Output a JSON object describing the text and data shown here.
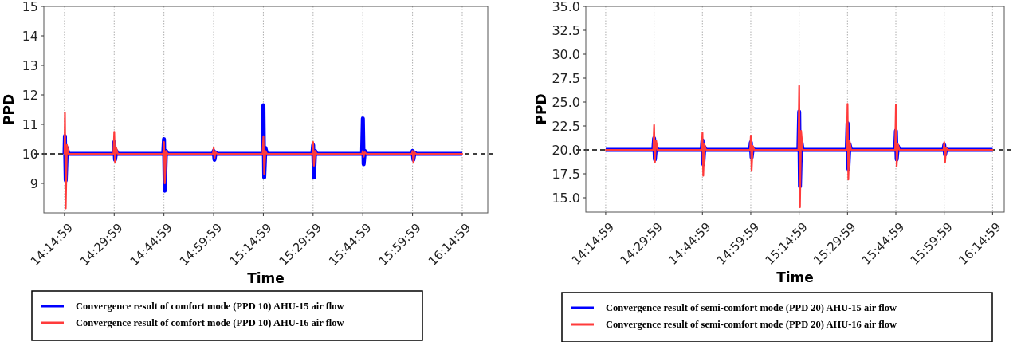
{
  "chart_data": [
    {
      "type": "line",
      "xlabel": "Time",
      "ylabel": "PPD",
      "xlim": [
        14.146,
        16.378
      ],
      "ylim": [
        8,
        15
      ],
      "xticks": [
        {
          "value": 14.249722,
          "label": "14:14:59"
        },
        {
          "value": 14.499722,
          "label": "14:29:59"
        },
        {
          "value": 14.749722,
          "label": "14:44:59"
        },
        {
          "value": 14.999722,
          "label": "14:59:59"
        },
        {
          "value": 15.249722,
          "label": "15:14:59"
        },
        {
          "value": 15.499722,
          "label": "15:29:59"
        },
        {
          "value": 15.749722,
          "label": "15:44:59"
        },
        {
          "value": 15.999722,
          "label": "15:59:59"
        },
        {
          "value": 16.249722,
          "label": "16:14:59"
        }
      ],
      "yticks": [
        9,
        10,
        11,
        12,
        13,
        14,
        15
      ],
      "grid": "x",
      "legend": "bottom",
      "marker": "none",
      "line_style": "solid",
      "ref_lines": [
        {
          "axis": "y",
          "value": 10,
          "label": null,
          "color": "#000000",
          "line_style": "dashed"
        }
      ],
      "x": [
        14.25,
        14.252,
        14.256,
        14.262,
        14.27,
        14.496,
        14.5,
        14.504,
        14.51,
        14.518,
        14.746,
        14.75,
        14.754,
        14.76,
        14.768,
        14.996,
        15.0,
        15.004,
        15.01,
        15.018,
        15.246,
        15.25,
        15.254,
        15.26,
        15.268,
        15.496,
        15.5,
        15.504,
        15.51,
        15.518,
        15.746,
        15.75,
        15.754,
        15.76,
        15.768,
        15.996,
        16.0,
        16.004,
        16.01,
        16.018,
        16.25
      ],
      "series": [
        {
          "name": "Convergence result of comfort mode (PPD 10) AHU-15 air flow",
          "color": "#0000ff",
          "values": [
            10,
            10.6,
            9.1,
            10.2,
            10,
            10,
            10.4,
            9.8,
            10.1,
            10,
            10,
            10.5,
            8.75,
            10.1,
            10,
            10,
            10.1,
            9.8,
            10.05,
            10,
            10,
            11.65,
            9.2,
            10.2,
            10,
            10,
            10.3,
            9.2,
            10.1,
            10,
            10,
            11.2,
            9.65,
            10.1,
            10,
            10,
            10.1,
            9.8,
            10.05,
            10,
            10
          ]
        },
        {
          "name": "Convergence result of comfort mode (PPD 10) AHU-16 air flow",
          "color": "#ff3b3b",
          "values": [
            10,
            11.4,
            8.15,
            10.3,
            10,
            10,
            10.75,
            9.7,
            10.2,
            10,
            10,
            10.4,
            9.0,
            10.1,
            10,
            10,
            10.2,
            9.85,
            10.05,
            10,
            10,
            10.6,
            9.3,
            10.1,
            10,
            10,
            10.4,
            9.6,
            10.1,
            10,
            10,
            10.1,
            9.9,
            10.05,
            10,
            10,
            10.1,
            9.7,
            10.05,
            10,
            10
          ]
        }
      ]
    },
    {
      "type": "line",
      "xlabel": "Time",
      "ylabel": "PPD",
      "xlim": [
        14.147,
        16.31
      ],
      "ylim": [
        13.5,
        35
      ],
      "xticks": [
        {
          "value": 14.249722,
          "label": "14:14:59"
        },
        {
          "value": 14.499722,
          "label": "14:29:59"
        },
        {
          "value": 14.749722,
          "label": "14:44:59"
        },
        {
          "value": 14.999722,
          "label": "14:59:59"
        },
        {
          "value": 15.249722,
          "label": "15:14:59"
        },
        {
          "value": 15.499722,
          "label": "15:29:59"
        },
        {
          "value": 15.749722,
          "label": "15:44:59"
        },
        {
          "value": 15.999722,
          "label": "15:59:59"
        },
        {
          "value": 16.249722,
          "label": "16:14:59"
        }
      ],
      "yticks": [
        {
          "value": 15,
          "label": "15.0"
        },
        {
          "value": 17.5,
          "label": "17.5"
        },
        {
          "value": 20,
          "label": "20.0"
        },
        {
          "value": 22.5,
          "label": "22.5"
        },
        {
          "value": 25,
          "label": "25.0"
        },
        {
          "value": 27.5,
          "label": "27.5"
        },
        {
          "value": 30,
          "label": "30.0"
        },
        {
          "value": 32.5,
          "label": "32.5"
        },
        {
          "value": 35,
          "label": "35.0"
        }
      ],
      "grid": "x",
      "legend": "bottom",
      "marker": "none",
      "line_style": "solid",
      "ref_lines": [
        {
          "axis": "y",
          "value": 20,
          "label": null,
          "color": "#000000",
          "line_style": "dashed"
        }
      ],
      "x": [
        14.25,
        14.496,
        14.5,
        14.504,
        14.51,
        14.518,
        14.746,
        14.75,
        14.754,
        14.76,
        14.768,
        14.996,
        15.0,
        15.004,
        15.01,
        15.018,
        15.246,
        15.25,
        15.254,
        15.26,
        15.268,
        15.496,
        15.5,
        15.504,
        15.51,
        15.518,
        15.746,
        15.75,
        15.754,
        15.76,
        15.768,
        15.996,
        16.0,
        16.004,
        16.01,
        16.018,
        16.25
      ],
      "series": [
        {
          "name": "Convergence result of semi-comfort mode (PPD 20) AHU-15 air flow",
          "color": "#0000ff",
          "values": [
            20,
            20,
            21.2,
            19.0,
            20.4,
            20,
            20,
            21.0,
            18.5,
            20.3,
            20,
            20,
            20.8,
            19.2,
            20.2,
            20,
            20,
            24.0,
            16.2,
            21.0,
            20,
            20,
            22.8,
            18.0,
            20.6,
            20,
            20,
            22.0,
            19.0,
            20.4,
            20,
            20,
            20.5,
            19.5,
            20.1,
            20,
            20
          ]
        },
        {
          "name": "Convergence result of semi-comfort mode (PPD 20) AHU-16 air flow",
          "color": "#ff3b3b",
          "values": [
            20,
            20,
            22.6,
            18.7,
            21.0,
            20,
            20,
            21.8,
            17.3,
            20.6,
            20,
            20,
            21.5,
            17.8,
            20.4,
            20,
            20,
            26.7,
            14.0,
            22.0,
            20,
            20,
            24.8,
            16.9,
            21.0,
            20,
            20,
            24.7,
            18.3,
            20.6,
            20,
            20,
            20.8,
            18.7,
            20.2,
            20,
            20
          ]
        }
      ]
    }
  ]
}
